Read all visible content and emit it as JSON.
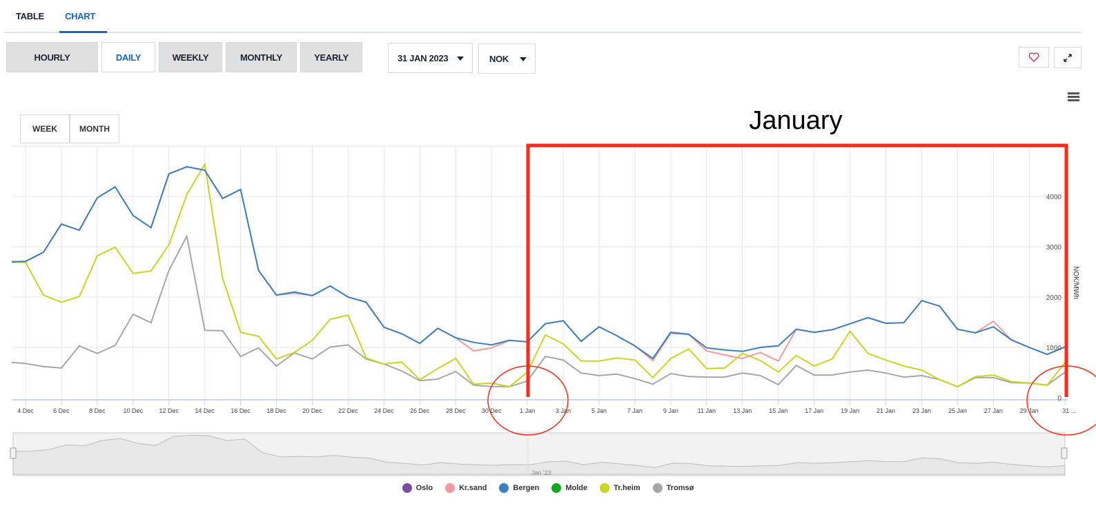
{
  "tabs": [
    {
      "label": "TABLE"
    },
    {
      "label": "CHART",
      "active": true
    }
  ],
  "periods": [
    {
      "label": "HOURLY"
    },
    {
      "label": "DAILY",
      "active": true
    },
    {
      "label": "WEEKLY"
    },
    {
      "label": "MONTHLY"
    },
    {
      "label": "YEARLY"
    }
  ],
  "date_select": {
    "value": "31 JAN 2023"
  },
  "currency_select": {
    "value": "NOK"
  },
  "icons": {
    "favorite": "heart-icon",
    "fullscreen": "expand-icon",
    "menu": "hamburger-menu-icon"
  },
  "range_buttons": [
    {
      "label": "WEEK"
    },
    {
      "label": "MONTH"
    }
  ],
  "annotation": {
    "label": "January",
    "color": "#ff2a1a"
  },
  "chart_data": {
    "type": "line",
    "ylabel": "NOK/MWh",
    "ylim": [
      0,
      5000
    ],
    "yticks": [
      0,
      1000,
      2000,
      3000,
      4000
    ],
    "grid": true,
    "legend_position": "bottom",
    "x": [
      "3 Dec",
      "4 Dec",
      "5 Dec",
      "6 Dec",
      "7 Dec",
      "8 Dec",
      "9 Dec",
      "10 Dec",
      "11 Dec",
      "12 Dec",
      "13 Dec",
      "14 Dec",
      "15 Dec",
      "16 Dec",
      "17 Dec",
      "18 Dec",
      "19 Dec",
      "20 Dec",
      "21 Dec",
      "22 Dec",
      "23 Dec",
      "24 Dec",
      "25 Dec",
      "26 Dec",
      "27 Dec",
      "28 Dec",
      "29 Dec",
      "30 Dec",
      "31 Dec",
      "1 Jan",
      "2 Jan",
      "3 Jan",
      "4 Jan",
      "5 Jan",
      "6 Jan",
      "7 Jan",
      "8 Jan",
      "9 Jan",
      "10 Jan",
      "11 Jan",
      "12 Jan",
      "13 Jan",
      "14 Jan",
      "15 Jan",
      "16 Jan",
      "17 Jan",
      "18 Jan",
      "19 Jan",
      "20 Jan",
      "21 Jan",
      "22 Jan",
      "23 Jan",
      "24 Jan",
      "25 Jan",
      "26 Jan",
      "27 Jan",
      "28 Jan",
      "29 Jan",
      "30 Jan",
      "31 Jan"
    ],
    "xtick_labels": [
      "4 Dec",
      "6 Dec",
      "8 Dec",
      "10 Dec",
      "12 Dec",
      "14 Dec",
      "16 Dec",
      "18 Dec",
      "20 Dec",
      "22 Dec",
      "24 Dec",
      "26 Dec",
      "28 Dec",
      "30 Dec",
      "1 Jan",
      "3 Jan",
      "5 Jan",
      "7 Jan",
      "9 Jan",
      "11 Jan",
      "13 Jan",
      "15 Jan",
      "17 Jan",
      "19 Jan",
      "21 Jan",
      "23 Jan",
      "25 Jan",
      "27 Jan",
      "29 Jan",
      "31 ..."
    ],
    "navigator_label": "Jan '23",
    "series": [
      {
        "name": "Oslo",
        "color": "#7b4fa0"
      },
      {
        "name": "Kr.sand",
        "color": "#f59a9a",
        "values": [
          2700,
          2710,
          2890,
          3450,
          3330,
          3970,
          4190,
          3620,
          3380,
          4450,
          4590,
          4520,
          3960,
          4140,
          2530,
          2040,
          2080,
          2030,
          2220,
          2000,
          1900,
          1400,
          1270,
          1080,
          1380,
          1190,
          930,
          990,
          1140,
          1110,
          1470,
          1530,
          1120,
          1410,
          1230,
          1030,
          740,
          1280,
          1260,
          930,
          850,
          780,
          900,
          730,
          1360,
          1300,
          1350,
          1470,
          1590,
          1480,
          1490,
          1930,
          1820,
          1360,
          1290,
          1520,
          1150,
          1000,
          860,
          1010
        ]
      },
      {
        "name": "Bergen",
        "color": "#3a7fc0",
        "values": [
          2700,
          2710,
          2890,
          3450,
          3330,
          3970,
          4190,
          3620,
          3380,
          4450,
          4590,
          4520,
          3960,
          4140,
          2530,
          2040,
          2100,
          2030,
          2220,
          2000,
          1900,
          1400,
          1270,
          1080,
          1380,
          1190,
          1100,
          1050,
          1140,
          1110,
          1470,
          1530,
          1120,
          1410,
          1230,
          1030,
          780,
          1300,
          1260,
          990,
          950,
          920,
          1000,
          1030,
          1360,
          1300,
          1350,
          1470,
          1590,
          1480,
          1490,
          1930,
          1820,
          1360,
          1290,
          1410,
          1150,
          1000,
          860,
          1010
        ]
      },
      {
        "name": "Molde",
        "color": "#12a81a"
      },
      {
        "name": "Tr.heim",
        "color": "#c8d620",
        "values": [
          2690,
          2690,
          2040,
          1900,
          2010,
          2820,
          2990,
          2470,
          2520,
          3040,
          4040,
          4640,
          2370,
          1300,
          1220,
          770,
          900,
          1140,
          1560,
          1640,
          790,
          670,
          710,
          360,
          580,
          780,
          270,
          290,
          220,
          510,
          1250,
          1070,
          730,
          730,
          790,
          750,
          400,
          780,
          970,
          580,
          590,
          880,
          740,
          510,
          840,
          630,
          770,
          1320,
          880,
          750,
          630,
          550,
          360,
          220,
          420,
          450,
          320,
          290,
          250,
          700
        ]
      },
      {
        "name": "Tromsø",
        "color": "#a6a6a6",
        "values": [
          710,
          680,
          620,
          590,
          1030,
          880,
          1040,
          1660,
          1490,
          2530,
          3210,
          1340,
          1330,
          820,
          990,
          630,
          890,
          770,
          1010,
          1050,
          770,
          670,
          530,
          340,
          370,
          520,
          250,
          220,
          220,
          330,
          820,
          750,
          490,
          440,
          470,
          380,
          270,
          480,
          420,
          410,
          410,
          490,
          440,
          260,
          640,
          450,
          450,
          510,
          550,
          490,
          410,
          440,
          360,
          220,
          400,
          400,
          300,
          290,
          250,
          510
        ]
      }
    ]
  }
}
